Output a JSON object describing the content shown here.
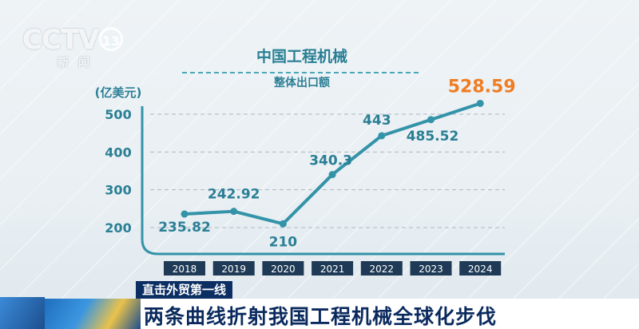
{
  "logo": {
    "brand": "CCTV",
    "channel": "13",
    "sub": "新闻"
  },
  "chart_data": {
    "type": "line",
    "title": "中国工程机械",
    "subtitle": "整体出口额",
    "unit": "(亿美元)",
    "categories": [
      "2018",
      "2019",
      "2020",
      "2021",
      "2022",
      "2023",
      "2024"
    ],
    "values": [
      235.82,
      242.92,
      210,
      340.3,
      443,
      485.52,
      528.59
    ],
    "value_labels": [
      "235.82",
      "242.92",
      "210",
      "340.3",
      "443",
      "485.52",
      "528.59"
    ],
    "y_ticks": [
      "200",
      "300",
      "400",
      "500"
    ],
    "ylim": [
      165,
      565
    ],
    "grid": "dashed horizontal",
    "colors": {
      "line": "#3393a8",
      "text": "#2a7f95",
      "highlight": "#ef7d22",
      "tick_box": "#1e3a56"
    }
  },
  "banner": {
    "tag": "直击外贸第一线",
    "headline": "两条曲线折射我国工程机械全球化步伐"
  }
}
